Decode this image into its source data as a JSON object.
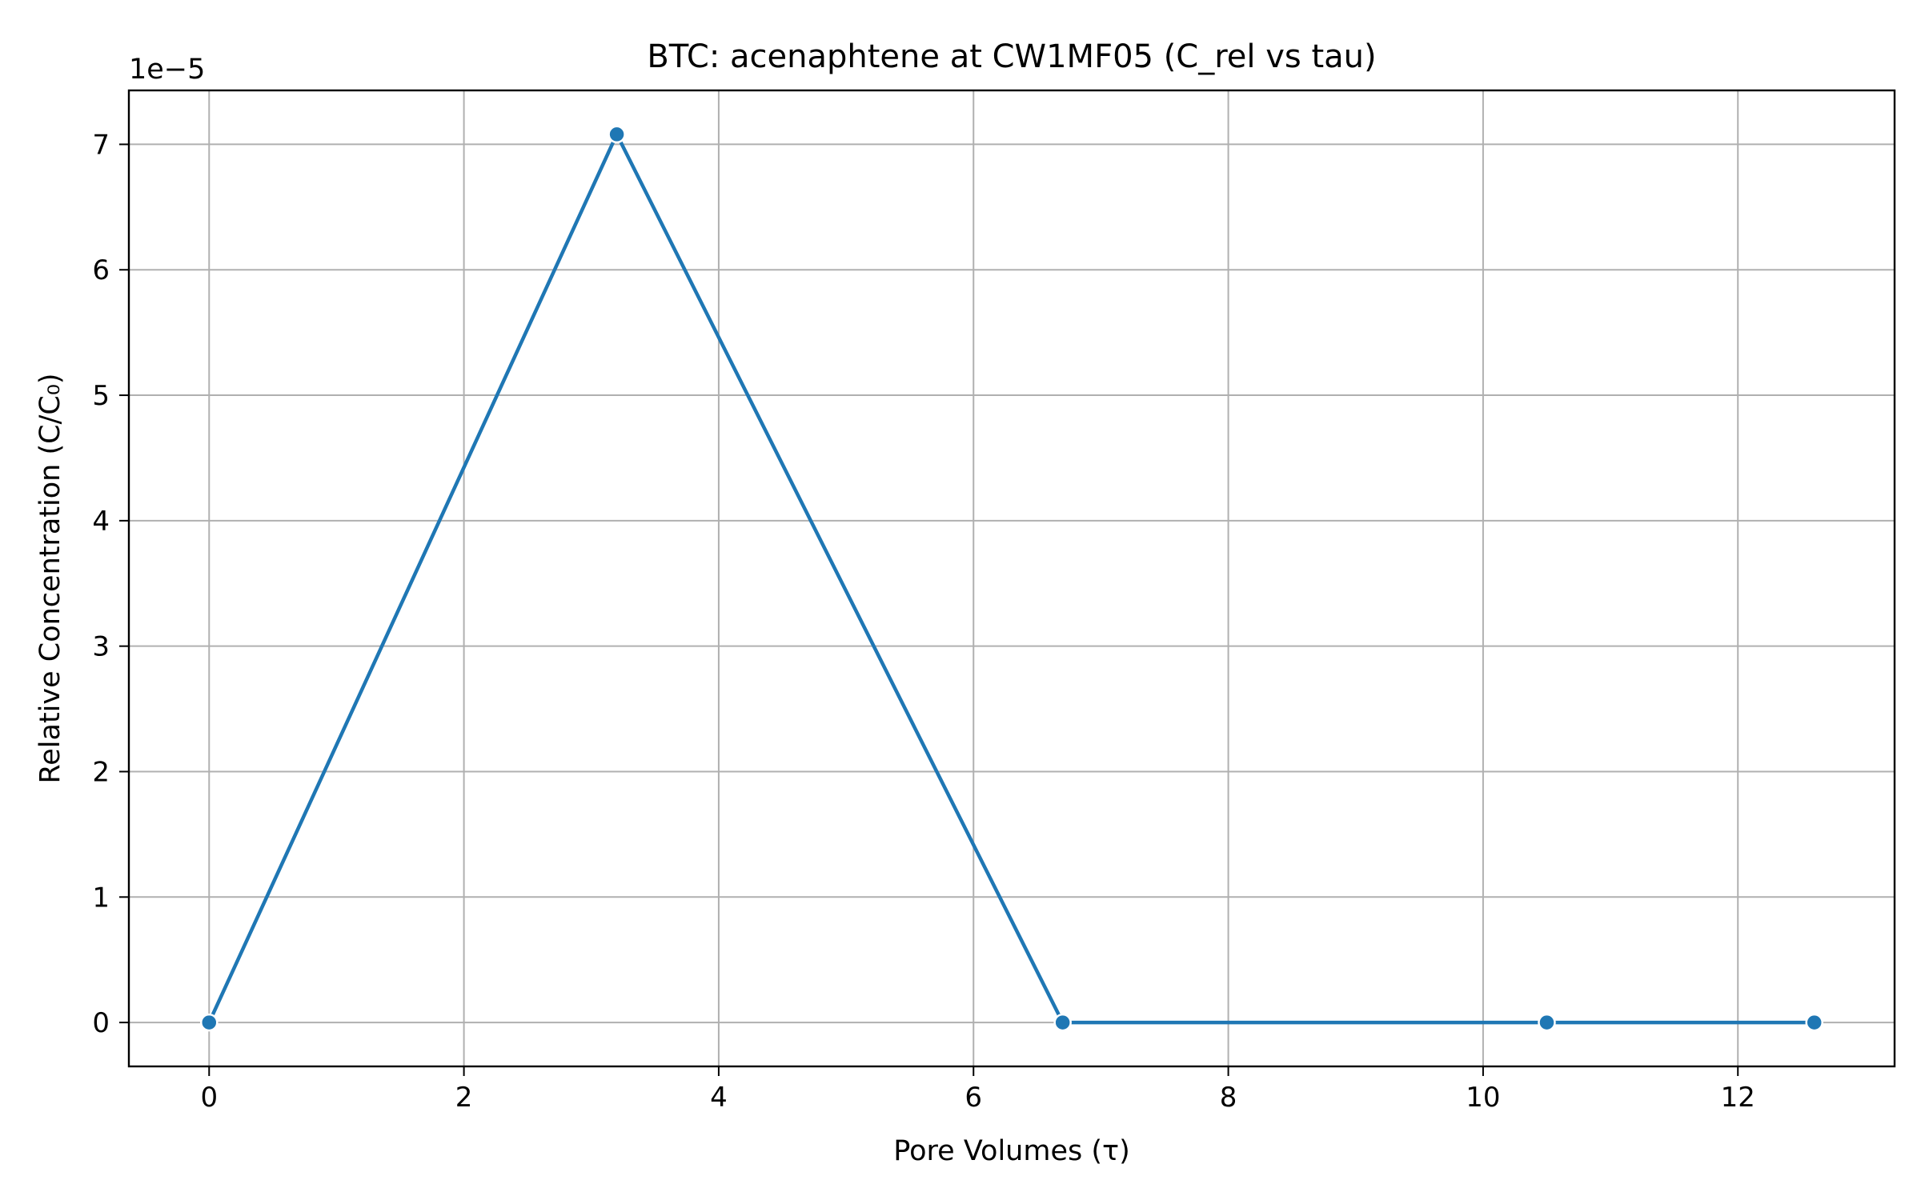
{
  "chart_data": {
    "type": "line",
    "title": "BTC: acenaphtene at CW1MF05 (C_rel vs tau)",
    "xlabel": "Pore Volumes (τ)",
    "ylabel": "Relative Concentration (C/C₀)",
    "y_offset_label": "1e−5",
    "y_scale": 1e-05,
    "xlim": [
      -0.63,
      13.23
    ],
    "ylim": [
      -3.5e-06,
      7.43e-05
    ],
    "x_ticks": [
      0,
      2,
      4,
      6,
      8,
      10,
      12
    ],
    "x_tick_labels": [
      "0",
      "2",
      "4",
      "6",
      "8",
      "10",
      "12"
    ],
    "y_ticks": [
      0,
      1e-05,
      2e-05,
      3e-05,
      4e-05,
      5e-05,
      6e-05,
      7e-05
    ],
    "y_tick_labels": [
      "0",
      "1",
      "2",
      "3",
      "4",
      "5",
      "6",
      "7"
    ],
    "grid": true,
    "legend": "none",
    "series": [
      {
        "color": "#1f77b4",
        "marker": "circle",
        "x": [
          0,
          3.2,
          6.7,
          10.5,
          12.6
        ],
        "y": [
          0,
          7.08e-05,
          0,
          0,
          0
        ]
      }
    ]
  }
}
